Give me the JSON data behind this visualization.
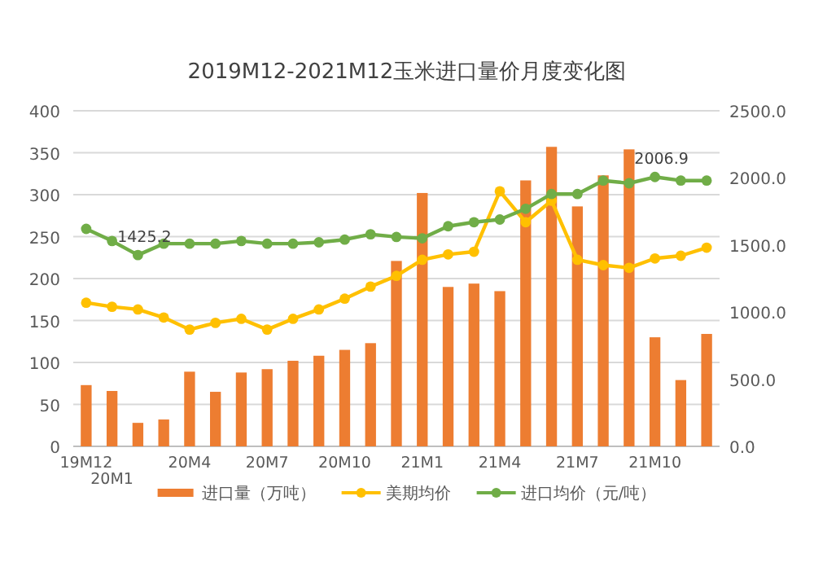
{
  "chart_data": {
    "type": "bar",
    "title": "2019M12-2021M12玉米进口量价月度变化图",
    "categories": [
      "19M12",
      "20M1",
      null,
      null,
      "20M4",
      null,
      null,
      "20M7",
      null,
      null,
      "20M10",
      null,
      null,
      "21M1",
      null,
      null,
      "21M4",
      null,
      null,
      "21M7",
      null,
      null,
      "21M10",
      null,
      null
    ],
    "series": [
      {
        "name": "进口量（万吨）",
        "color": "#ed7d31",
        "values": [
          73,
          66,
          28,
          32,
          89,
          65,
          88,
          92,
          102,
          108,
          115,
          123,
          221,
          302,
          190,
          194,
          185,
          317,
          357,
          286,
          323,
          354,
          130,
          79,
          134
        ]
      },
      {
        "name": "美期均价",
        "type": "line",
        "axis": "y2",
        "color": "#ffc000",
        "values": [
          1070,
          1040,
          1020,
          960,
          870,
          920,
          950,
          870,
          950,
          1020,
          1100,
          1190,
          1270,
          1390,
          1430,
          1450,
          1900,
          1670,
          1830,
          1390,
          1350,
          1330,
          1400,
          1420,
          1480
        ]
      },
      {
        "name": "进口均价（元/吨）",
        "type": "line",
        "axis": "y2",
        "color": "#70ad47",
        "values": [
          1620,
          1530,
          1425.2,
          1510,
          1510,
          1510,
          1530,
          1510,
          1510,
          1520,
          1540,
          1580,
          1560,
          1550,
          1640,
          1670,
          1690,
          1770,
          1880,
          1880,
          1980,
          1960,
          2006.9,
          1980,
          1980
        ],
        "value_labels": [
          null,
          null,
          "1425.2",
          null,
          null,
          null,
          null,
          null,
          null,
          null,
          null,
          null,
          null,
          null,
          null,
          null,
          null,
          null,
          null,
          null,
          null,
          null,
          "2006.9",
          null,
          null
        ]
      }
    ],
    "ylim": [
      0,
      400
    ],
    "yticks": [
      0,
      50,
      100,
      150,
      200,
      250,
      300,
      350,
      400
    ],
    "y2lim": [
      0,
      2500
    ],
    "y2ticks": [
      {
        "value": 0,
        "label": "0.0"
      },
      {
        "value": 500,
        "label": "500.0"
      },
      {
        "value": 1000,
        "label": "1000.0"
      },
      {
        "value": 1500,
        "label": "1500.0"
      },
      {
        "value": 2000,
        "label": "2000.0"
      },
      {
        "value": 2500,
        "label": "2500.0"
      }
    ],
    "grid": "y",
    "legend": "bottom",
    "marker": "circle"
  }
}
